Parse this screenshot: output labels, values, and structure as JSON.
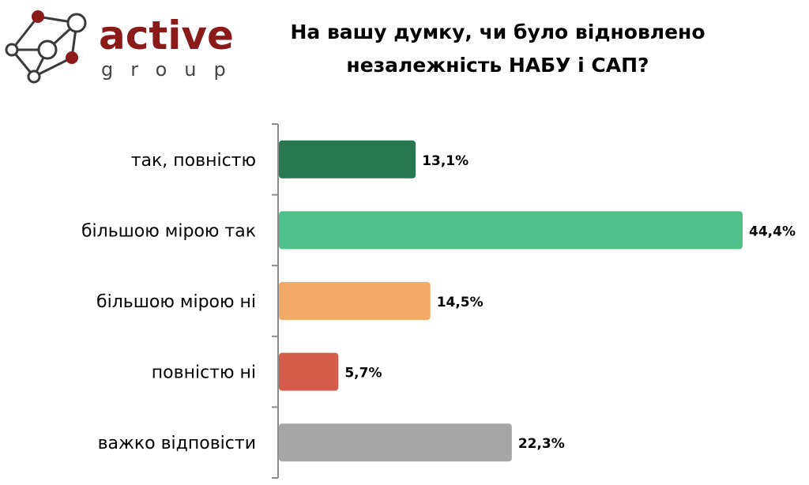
{
  "logo": {
    "line1": "active",
    "line2": "group",
    "color": "#8b1a1a"
  },
  "chart_data": {
    "type": "bar",
    "orientation": "horizontal",
    "title": [
      "На вашу думку, чи було відновлено",
      "незалежність НАБУ і САП?"
    ],
    "categories": [
      "так, повністю",
      "більшою мірою так",
      "більшою мірою ні",
      "повністю ні",
      "важко відповісти"
    ],
    "values": [
      13.1,
      44.4,
      14.5,
      5.7,
      22.3
    ],
    "data_labels": [
      "13,1%",
      "44,4%",
      "14,5%",
      "5,7%",
      "22,3%"
    ],
    "colors": [
      "#277752",
      "#4fc08a",
      "#f2aa66",
      "#d65c4c",
      "#a6a6a6"
    ],
    "xlim": [
      0,
      44.4
    ],
    "grid": false,
    "legend": "none"
  }
}
